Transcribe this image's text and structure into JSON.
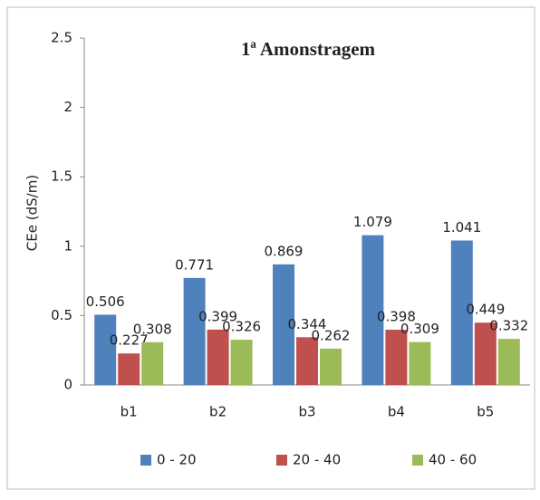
{
  "chart_data": {
    "type": "bar",
    "title": "1ª Amonstragem",
    "y_label": "CEe (dS/m)",
    "categories": [
      "b1",
      "b2",
      "b3",
      "b4",
      "b5"
    ],
    "series": [
      {
        "name": "0 - 20",
        "color": "#4f81bd",
        "values": [
          0.506,
          0.771,
          0.869,
          1.079,
          1.041
        ]
      },
      {
        "name": "20 - 40",
        "color": "#c0504d",
        "values": [
          0.227,
          0.399,
          0.344,
          0.398,
          0.449
        ]
      },
      {
        "name": "40 - 60",
        "color": "#9bbb59",
        "values": [
          0.308,
          0.326,
          0.262,
          0.309,
          0.332
        ]
      }
    ],
    "ylim": [
      0,
      2.5
    ],
    "yticks": [
      0,
      0.5,
      1,
      1.5,
      2,
      2.5
    ],
    "grid": false,
    "legend": "bottom"
  }
}
